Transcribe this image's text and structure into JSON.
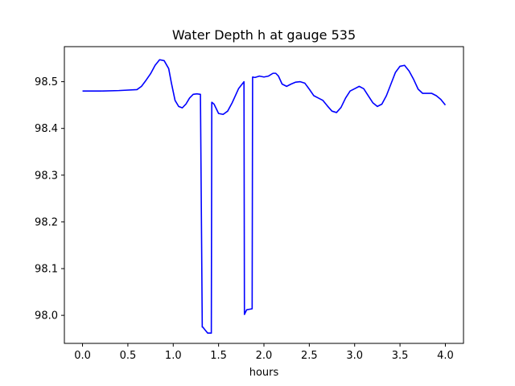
{
  "chart_data": {
    "type": "line",
    "title": "Water Depth h at gauge 535",
    "xlabel": "hours",
    "ylabel": "",
    "xlim": [
      -0.2,
      4.2
    ],
    "ylim": [
      97.94,
      98.575
    ],
    "xticks": [
      0.0,
      0.5,
      1.0,
      1.5,
      2.0,
      2.5,
      3.0,
      3.5,
      4.0
    ],
    "xtick_labels": [
      "0.0",
      "0.5",
      "1.0",
      "1.5",
      "2.0",
      "2.5",
      "3.0",
      "3.5",
      "4.0"
    ],
    "yticks": [
      98.0,
      98.1,
      98.2,
      98.3,
      98.4,
      98.5
    ],
    "ytick_labels": [
      "98.0",
      "98.1",
      "98.2",
      "98.3",
      "98.4",
      "98.5"
    ],
    "grid": false,
    "series": [
      {
        "color": "#0000ff",
        "x": [
          0.0,
          0.2,
          0.4,
          0.6,
          0.65,
          0.7,
          0.75,
          0.8,
          0.85,
          0.9,
          0.95,
          0.98,
          1.02,
          1.06,
          1.1,
          1.14,
          1.18,
          1.22,
          1.26,
          1.3,
          1.32,
          1.325,
          1.38,
          1.42,
          1.425,
          1.45,
          1.5,
          1.55,
          1.6,
          1.65,
          1.72,
          1.78,
          1.785,
          1.81,
          1.87,
          1.875,
          1.9,
          1.95,
          2.0,
          2.05,
          2.1,
          2.13,
          2.16,
          2.2,
          2.25,
          2.3,
          2.35,
          2.4,
          2.45,
          2.5,
          2.55,
          2.6,
          2.65,
          2.7,
          2.75,
          2.8,
          2.85,
          2.9,
          2.95,
          3.0,
          3.05,
          3.1,
          3.15,
          3.2,
          3.25,
          3.3,
          3.35,
          3.4,
          3.45,
          3.5,
          3.55,
          3.6,
          3.65,
          3.7,
          3.75,
          3.8,
          3.85,
          3.9,
          3.95,
          4.0
        ],
        "y": [
          98.48,
          98.48,
          98.481,
          98.483,
          98.49,
          98.503,
          98.517,
          98.535,
          98.547,
          98.545,
          98.528,
          98.497,
          98.46,
          98.447,
          98.444,
          98.452,
          98.465,
          98.473,
          98.474,
          98.473,
          97.975,
          97.975,
          97.962,
          97.962,
          98.456,
          98.452,
          98.432,
          98.43,
          98.437,
          98.455,
          98.485,
          98.5,
          98.002,
          98.012,
          98.014,
          98.51,
          98.509,
          98.512,
          98.51,
          98.512,
          98.518,
          98.518,
          98.512,
          98.495,
          98.49,
          98.495,
          98.499,
          98.5,
          98.497,
          98.484,
          98.47,
          98.465,
          98.46,
          98.448,
          98.437,
          98.434,
          98.445,
          98.465,
          98.48,
          98.485,
          98.49,
          98.485,
          98.47,
          98.455,
          98.447,
          98.452,
          98.47,
          98.495,
          98.52,
          98.533,
          98.535,
          98.523,
          98.505,
          98.484,
          98.475,
          98.475,
          98.475,
          98.47,
          98.462,
          98.45
        ]
      }
    ]
  }
}
